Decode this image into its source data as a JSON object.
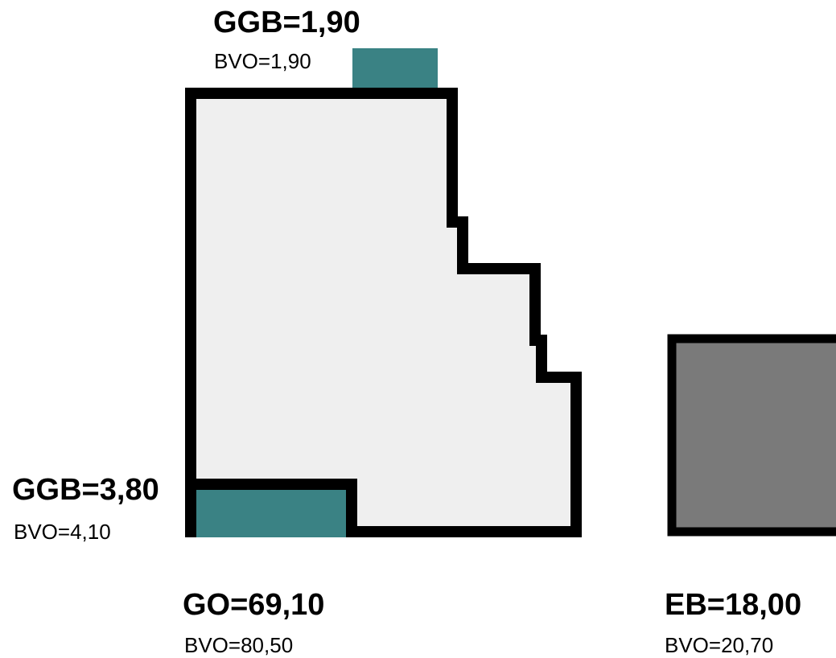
{
  "colors": {
    "floor_fill": "#efefef",
    "outline": "#000000",
    "garage_fill": "#3a8284",
    "extra_building_fill": "#7a7a7a"
  },
  "labels": {
    "top_garage": {
      "main": "GGB=1,90",
      "sub": "BVO=1,90"
    },
    "bottom_garage": {
      "main": "GGB=3,80",
      "sub": "BVO=4,10"
    },
    "main_floor": {
      "main": "GO=69,10",
      "sub": "BVO=80,50"
    },
    "extra_building": {
      "main": "EB=18,00",
      "sub": "BVO=20,70"
    }
  }
}
